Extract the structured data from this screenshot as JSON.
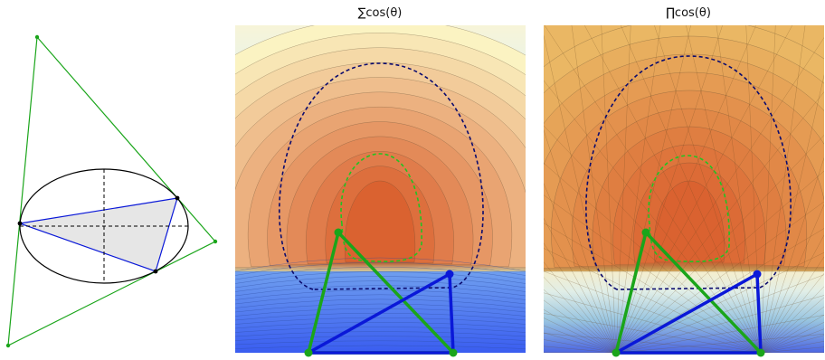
{
  "panels": {
    "left": {
      "label": ""
    },
    "middle": {
      "title": "∑cos(θ)"
    },
    "right": {
      "title": "∏cos(θ)"
    }
  },
  "colors": {
    "green": "#1aa51a",
    "blue": "#0a18d8",
    "navy": "#0b0b6e",
    "warm_light": "#fbf3c2",
    "warm_mid": "#eab764",
    "warm_dark": "#da6230",
    "cool_light": "#dff4f6",
    "cool_dark": "#3b5ff0",
    "ellipse_fill": "#e6e6e6"
  }
}
